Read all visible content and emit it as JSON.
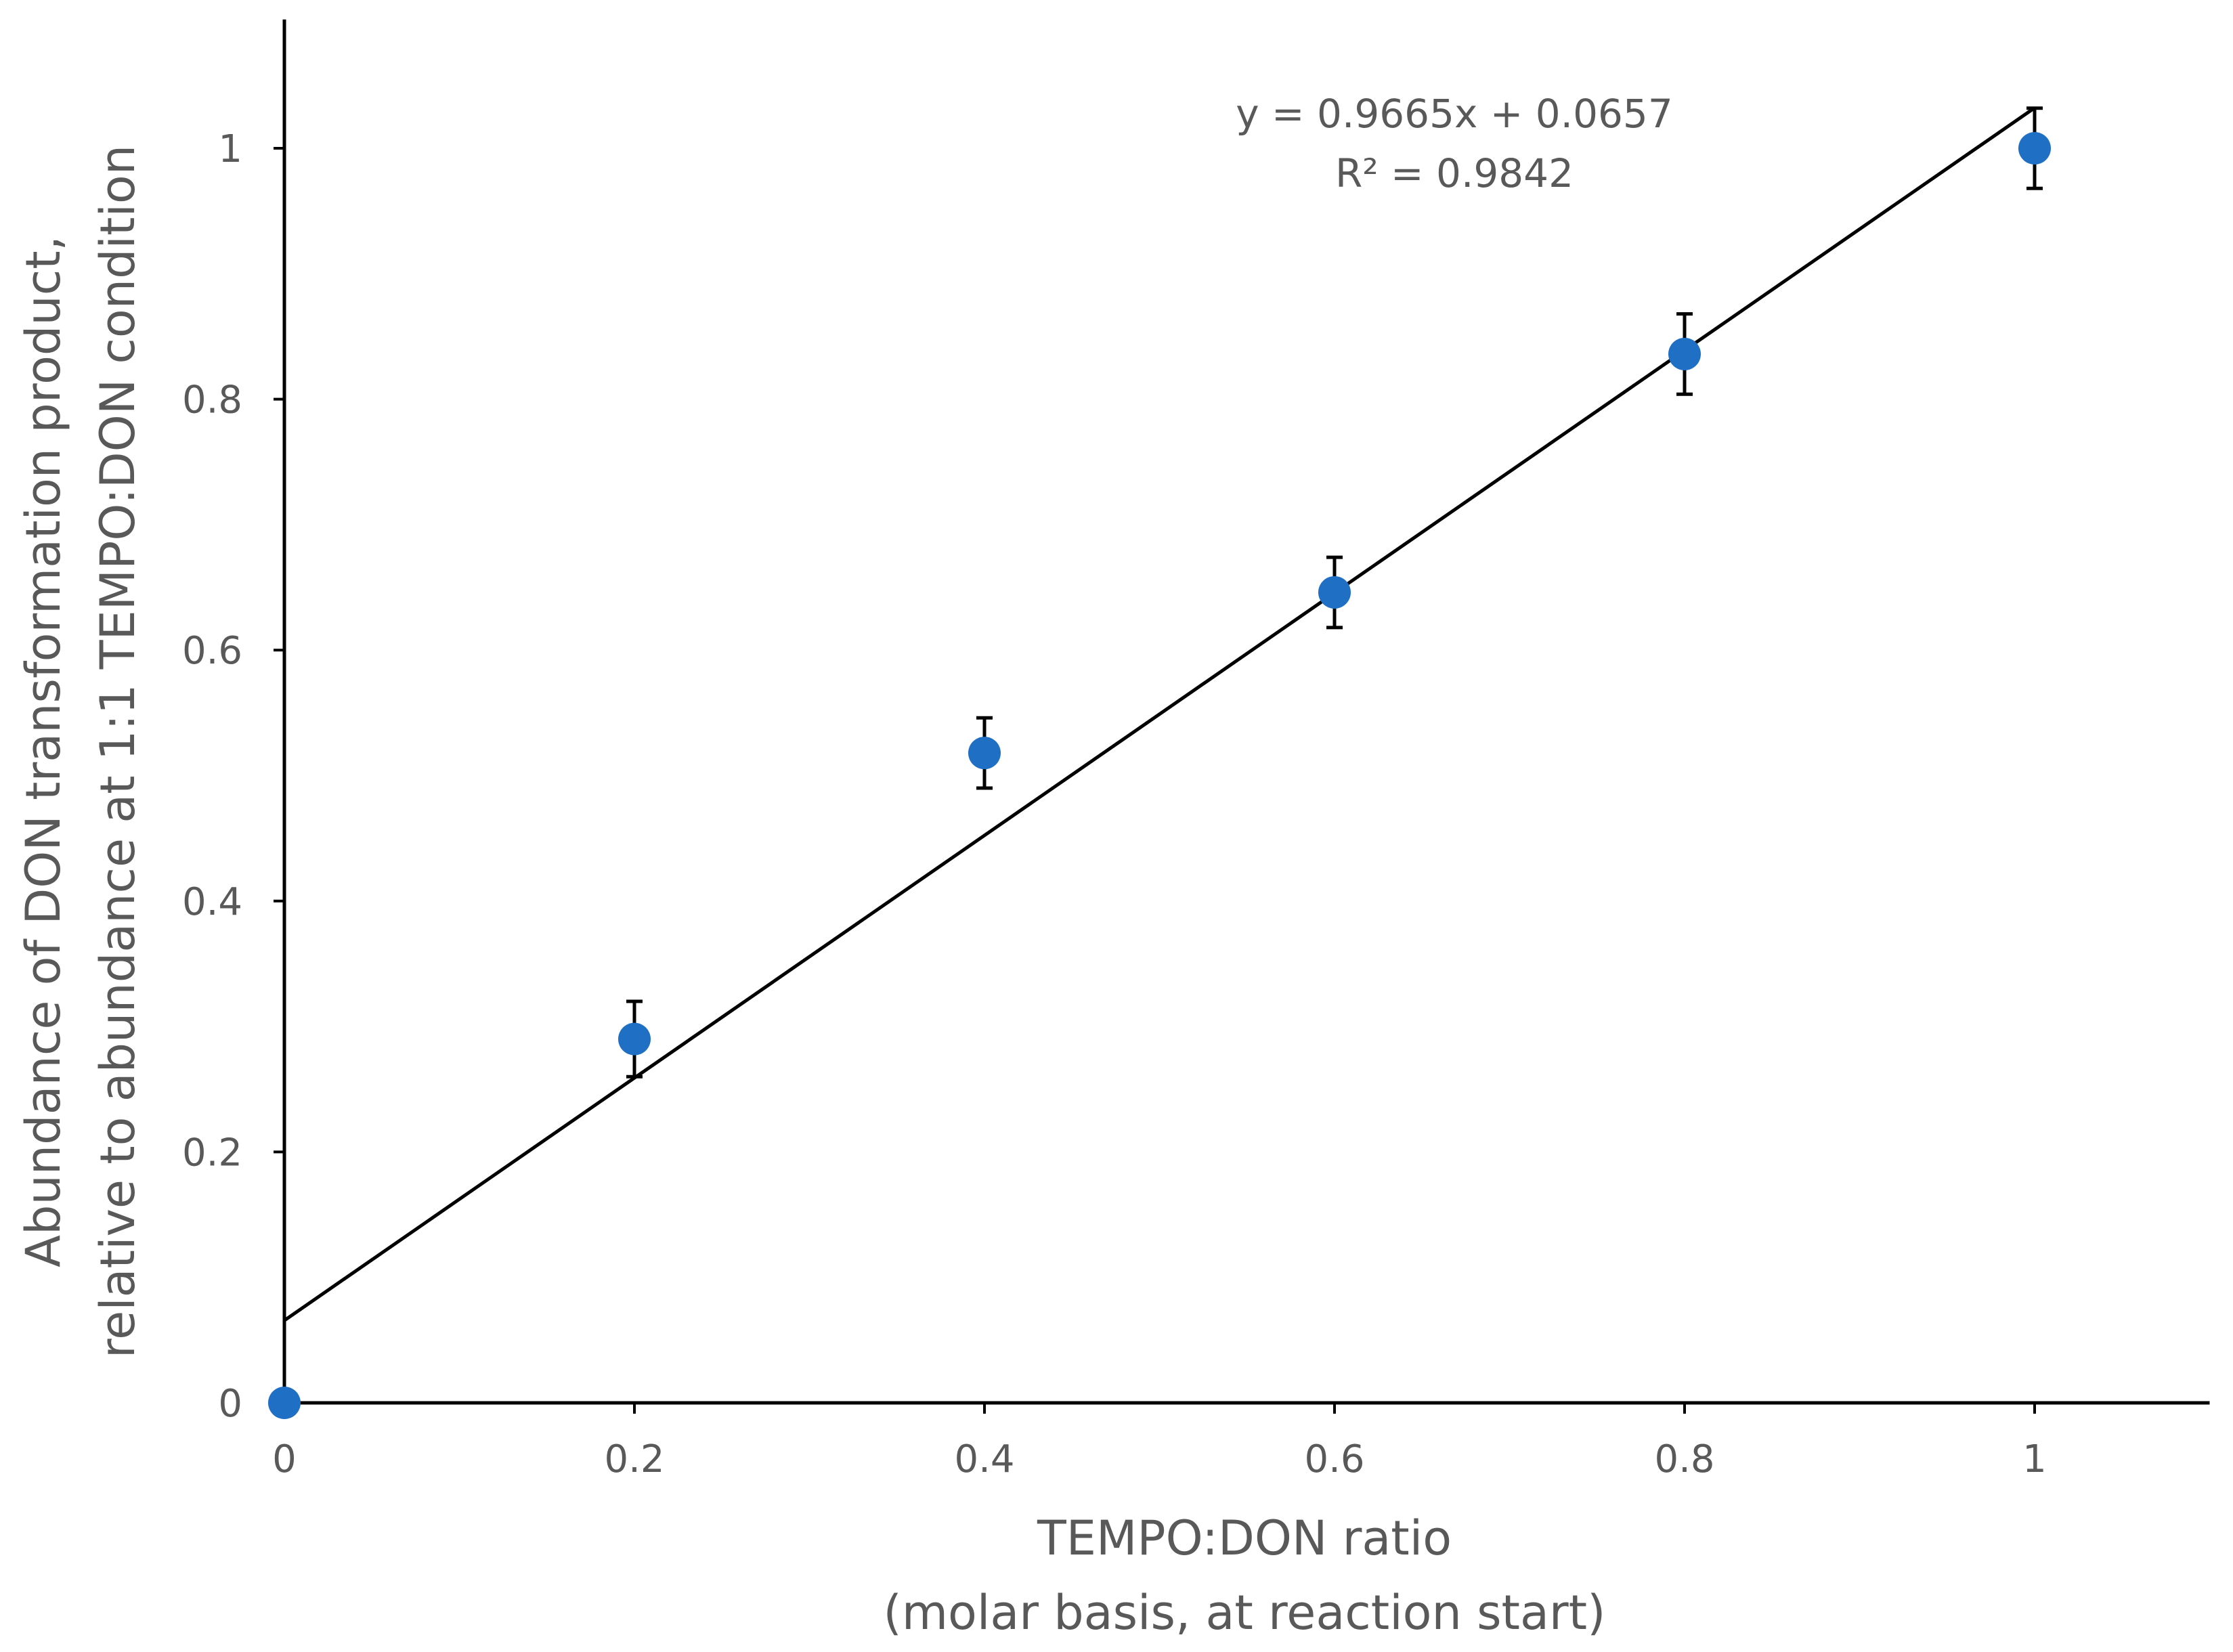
{
  "chart_data": {
    "type": "scatter",
    "title": "",
    "xlabel_lines": [
      "TEMPO:DON ratio",
      "(molar basis, at reaction start)"
    ],
    "ylabel_lines": [
      "Abundance of DON transformation product,",
      "relative to abundance at 1:1 TEMPO:DON condition"
    ],
    "xlim": [
      0,
      1.1
    ],
    "ylim": [
      0,
      1.1
    ],
    "x_ticks": [
      0,
      0.2,
      0.4,
      0.6,
      0.8,
      1
    ],
    "x_tick_labels": [
      "0",
      "0.2",
      "0.4",
      "0.6",
      "0.8",
      "1"
    ],
    "y_ticks": [
      0,
      0.2,
      0.4,
      0.6,
      0.8,
      1
    ],
    "y_tick_labels": [
      "0",
      "0.2",
      "0.4",
      "0.6",
      "0.8",
      "1"
    ],
    "grid": false,
    "series": [
      {
        "name": "DON transformation product",
        "color": "#1f6fc5",
        "x": [
          0,
          0.2,
          0.4,
          0.6,
          0.8,
          1
        ],
        "y": [
          0,
          0.29,
          0.518,
          0.646,
          0.836,
          1.0
        ],
        "error": [
          0,
          0.03,
          0.028,
          0.028,
          0.032,
          0.032
        ]
      }
    ],
    "trendline": {
      "type": "linear",
      "slope": 0.9665,
      "intercept": 0.0657,
      "x_range": [
        0,
        1
      ],
      "color": "#000000"
    },
    "annotations": [
      "y = 0.9665x + 0.0657",
      "R² = 0.9842"
    ]
  }
}
